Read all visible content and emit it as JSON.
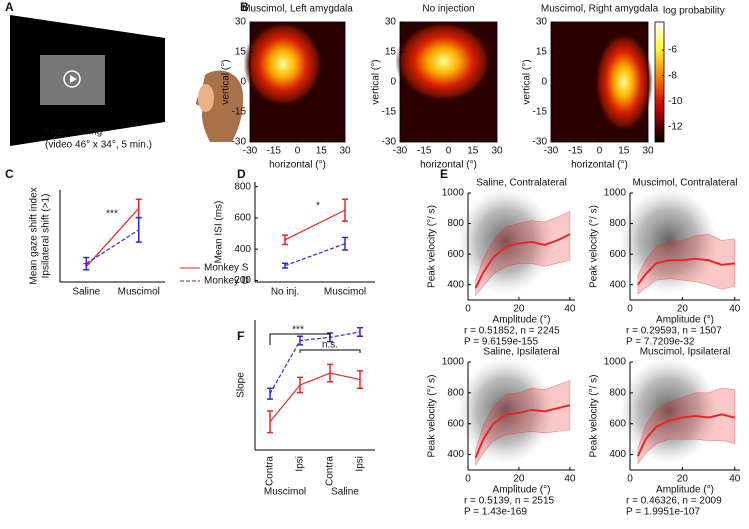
{
  "illustration": {
    "label": "A",
    "caption": [
      "Free-viewing",
      "(video 46° x 34°, 5 min.)"
    ]
  },
  "chart_data": [
    {
      "type": "heatmap",
      "label": "B",
      "title": "Muscimol, Left amygdala",
      "xlabel": "horizontal (°)",
      "ylabel": "vertical (°)",
      "xlim": [
        -30,
        30
      ],
      "ylim": [
        -30,
        30
      ],
      "xticks": [
        -30,
        -15,
        0,
        15,
        30
      ],
      "yticks": [
        -30,
        -15,
        0,
        15,
        30
      ]
    },
    {
      "type": "heatmap",
      "title": "No injection",
      "xlabel": "horizontal (°)",
      "ylabel": "vertical (°)",
      "xlim": [
        -30,
        30
      ],
      "ylim": [
        -30,
        30
      ],
      "xticks": [
        -30,
        -15,
        0,
        15,
        30
      ],
      "yticks": [
        -30,
        -15,
        0,
        15,
        30
      ]
    },
    {
      "type": "heatmap",
      "title": "Muscimol, Right amygdala",
      "xlabel": "horizontal (°)",
      "ylabel": "vertical (°)",
      "xlim": [
        -30,
        30
      ],
      "ylim": [
        -30,
        30
      ],
      "xticks": [
        -30,
        -15,
        0,
        15,
        30
      ],
      "yticks": [
        -30,
        -15,
        0,
        15,
        30
      ]
    },
    {
      "type": "colorbar",
      "label": "log probability",
      "ylim": [
        -13.2,
        -3.8
      ],
      "yticks": [
        -6,
        -8,
        -10,
        -12
      ]
    },
    {
      "type": "line",
      "label": "C",
      "ylabel": [
        "Mean gaze shift index",
        "Ipsilateral shift (>1)"
      ],
      "categories": [
        "Saline",
        "Muscimol"
      ],
      "ylim": [
        0.8,
        2.3
      ],
      "annotation": "***",
      "series": [
        {
          "name": "Monkey S",
          "color": "#e8262a",
          "linestyle": "solid",
          "values": [
            1.05,
            2.0
          ],
          "errors": [
            0.05,
            0.15
          ]
        },
        {
          "name": "Monkey D",
          "color": "#2b2bd6",
          "linestyle": "dashed",
          "values": [
            1.1,
            1.65
          ],
          "errors": [
            0.1,
            0.2
          ]
        }
      ]
    },
    {
      "type": "line",
      "label": "D",
      "ylabel": [
        "Mean ISI (ms)"
      ],
      "categories": [
        "No inj.",
        "Muscimol"
      ],
      "ylim": [
        190,
        830
      ],
      "yticks": [
        200,
        400,
        600,
        800
      ],
      "annotation": "*",
      "series": [
        {
          "color": "#e8262a",
          "linestyle": "solid",
          "values": [
            460,
            650
          ],
          "errors": [
            30,
            70
          ]
        },
        {
          "color": "#2b2bd6",
          "linestyle": "dashed",
          "values": [
            295,
            435
          ],
          "errors": [
            15,
            40
          ]
        }
      ]
    },
    {
      "type": "line",
      "label": "F",
      "ylabel": [
        "Slope"
      ],
      "categories": [
        "Contra",
        "Ipsi",
        "Contra",
        "Ipsi"
      ],
      "groups": [
        "Muscimol",
        "Saline"
      ],
      "ylim": [
        0,
        12
      ],
      "annotations": [
        "***",
        "n.s."
      ],
      "series": [
        {
          "color": "#e8262a",
          "linestyle": "solid",
          "values": [
            2.6,
            6.0,
            7.1,
            6.5
          ],
          "errors": [
            1.0,
            0.7,
            0.8,
            0.8
          ]
        },
        {
          "color": "#2b2bd6",
          "linestyle": "dashed",
          "values": [
            5.2,
            10.1,
            10.4,
            10.9
          ],
          "errors": [
            0.5,
            0.4,
            0.4,
            0.4
          ]
        }
      ]
    },
    {
      "type": "band",
      "label": "E",
      "title": "Saline, Contralateral",
      "xlabel": "Amplitude (°)",
      "ylabel": "Peak velocity (°/ s)",
      "xlim": [
        0,
        42
      ],
      "ylim": [
        300,
        1000
      ],
      "xticks": [
        0,
        20,
        40
      ],
      "yticks": [
        400,
        600,
        800,
        1000
      ],
      "stats": [
        "r = 0.51852, n = 2245",
        "P = 9.6159e-155"
      ],
      "color": "#e8262a",
      "x": [
        3,
        6,
        10,
        15,
        20,
        25,
        30,
        35,
        40
      ],
      "values": [
        380,
        480,
        580,
        650,
        670,
        680,
        660,
        690,
        730
      ],
      "lower": [
        330,
        390,
        470,
        520,
        540,
        540,
        520,
        540,
        560
      ],
      "upper": [
        430,
        570,
        690,
        780,
        800,
        820,
        810,
        840,
        880
      ]
    },
    {
      "type": "band",
      "title": "Muscimol, Contralateral",
      "xlabel": "Amplitude (°)",
      "ylabel": "Peak velocity (°/ s)",
      "xlim": [
        0,
        42
      ],
      "ylim": [
        300,
        1000
      ],
      "xticks": [
        0,
        20,
        40
      ],
      "yticks": [
        400,
        600,
        800,
        1000
      ],
      "stats": [
        "r = 0.29593, n = 1507",
        "P = 7.7209e-32"
      ],
      "color": "#e8262a",
      "x": [
        3,
        6,
        10,
        15,
        20,
        25,
        30,
        35,
        40
      ],
      "values": [
        400,
        470,
        540,
        560,
        560,
        570,
        560,
        530,
        540
      ],
      "lower": [
        340,
        380,
        430,
        440,
        430,
        420,
        400,
        370,
        390
      ],
      "upper": [
        460,
        560,
        650,
        680,
        690,
        720,
        730,
        690,
        700
      ]
    },
    {
      "type": "band",
      "title": "Saline, Ipsilateral",
      "xlabel": "Amplitude (°)",
      "ylabel": "Peak velocity (°/ s)",
      "xlim": [
        0,
        42
      ],
      "ylim": [
        300,
        1000
      ],
      "xticks": [
        0,
        20,
        40
      ],
      "yticks": [
        400,
        600,
        800,
        1000
      ],
      "stats": [
        "r = 0.5139, n = 2515",
        "P = 1.43e-169"
      ],
      "color": "#e8262a",
      "x": [
        3,
        6,
        10,
        15,
        20,
        25,
        30,
        35,
        40
      ],
      "values": [
        380,
        500,
        600,
        660,
        670,
        690,
        680,
        700,
        720
      ],
      "lower": [
        330,
        410,
        490,
        530,
        540,
        550,
        540,
        550,
        560
      ],
      "upper": [
        430,
        590,
        710,
        790,
        800,
        830,
        820,
        850,
        880
      ]
    },
    {
      "type": "band",
      "title": "Muscimol, Ipsilateral",
      "xlabel": "Amplitude (°)",
      "ylabel": "Peak velocity (°/ s)",
      "xlim": [
        0,
        42
      ],
      "ylim": [
        300,
        1000
      ],
      "xticks": [
        0,
        20,
        40
      ],
      "yticks": [
        400,
        600,
        800,
        1000
      ],
      "stats": [
        "r = 0.46326, n = 2009",
        "P = 1.9951e-107"
      ],
      "color": "#e8262a",
      "x": [
        3,
        6,
        10,
        15,
        20,
        25,
        30,
        35,
        40
      ],
      "values": [
        390,
        500,
        580,
        620,
        640,
        650,
        640,
        660,
        640
      ],
      "lower": [
        340,
        410,
        470,
        500,
        500,
        500,
        490,
        490,
        470
      ],
      "upper": [
        440,
        590,
        690,
        740,
        770,
        800,
        800,
        830,
        820
      ]
    }
  ]
}
